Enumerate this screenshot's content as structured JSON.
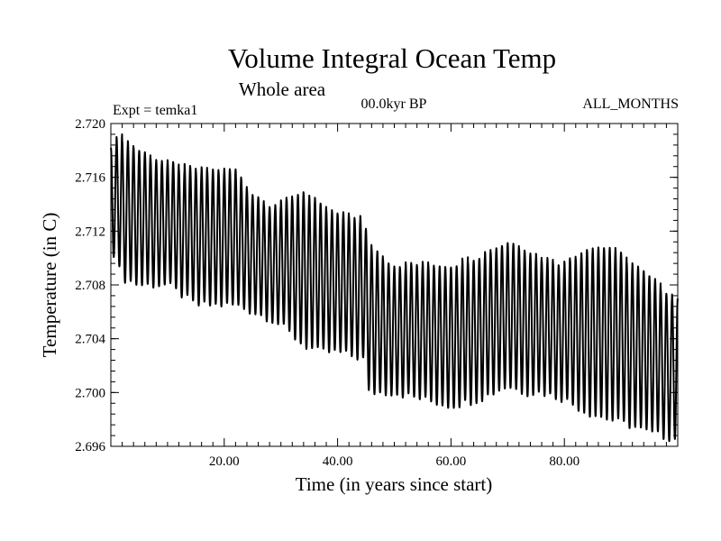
{
  "chart_data": {
    "type": "line",
    "title": "Volume Integral Ocean Temp",
    "subtitle": "Whole area",
    "experiment_label": "Expt = temka1",
    "period_label": "00.0kyr BP",
    "months_label": "ALL_MONTHS",
    "xlabel": "Time (in years since start)",
    "ylabel": "Temperature (in C)",
    "xlim": [
      0,
      100
    ],
    "ylim": [
      2.696,
      2.72
    ],
    "x_ticks": [
      {
        "value": 20,
        "label": "20.00"
      },
      {
        "value": 40,
        "label": "40.00"
      },
      {
        "value": 60,
        "label": "60.00"
      },
      {
        "value": 80,
        "label": "80.00"
      }
    ],
    "y_ticks": [
      {
        "value": 2.696,
        "label": "2.696"
      },
      {
        "value": 2.7,
        "label": "2.700"
      },
      {
        "value": 2.704,
        "label": "2.704"
      },
      {
        "value": 2.708,
        "label": "2.708"
      },
      {
        "value": 2.712,
        "label": "2.712"
      },
      {
        "value": 2.716,
        "label": "2.716"
      },
      {
        "value": 2.72,
        "label": "2.720"
      }
    ],
    "grid": false,
    "series": [
      {
        "name": "Volume integral ocean temperature",
        "color": "#000000",
        "sampling": "monthly",
        "cycle_years": 1,
        "x": [
          0,
          2,
          5,
          10,
          15,
          18,
          22,
          25,
          28,
          30,
          34,
          37,
          40,
          44.5,
          45.5,
          50,
          55,
          60,
          65,
          70,
          73,
          76,
          80,
          84,
          88,
          92,
          95,
          100
        ],
        "annual_max": [
          2.7185,
          2.719,
          2.718,
          2.717,
          2.7165,
          2.7165,
          2.7165,
          2.7148,
          2.714,
          2.714,
          2.715,
          2.7138,
          2.7132,
          2.713,
          2.711,
          2.7095,
          2.7095,
          2.7095,
          2.7102,
          2.7112,
          2.7108,
          2.71,
          2.7096,
          2.7108,
          2.7108,
          2.7096,
          2.7085,
          2.707
        ],
        "annual_min": [
          2.711,
          2.7085,
          2.708,
          2.708,
          2.7065,
          2.7065,
          2.7065,
          2.706,
          2.7055,
          2.705,
          2.7035,
          2.703,
          2.703,
          2.7025,
          2.7,
          2.7,
          2.6995,
          2.699,
          2.6995,
          2.7005,
          2.7,
          2.7,
          2.6995,
          2.6985,
          2.698,
          2.6975,
          2.697,
          2.6965
        ]
      }
    ]
  }
}
